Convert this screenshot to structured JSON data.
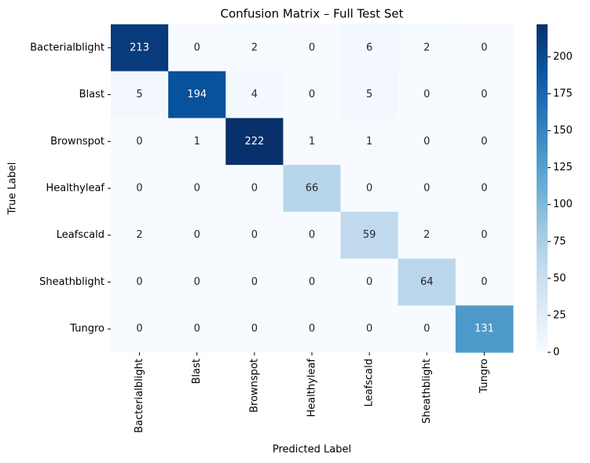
{
  "chart_data": {
    "type": "heatmap",
    "title": "Confusion Matrix – Full Test Set",
    "x_label": "Predicted Label",
    "y_label": "True Label",
    "x_categories": [
      "Bacterialblight",
      "Blast",
      "Brownspot",
      "Healthyleaf",
      "Leafscald",
      "Sheathblight",
      "Tungro"
    ],
    "y_categories": [
      "Bacterialblight",
      "Blast",
      "Brownspot",
      "Healthyleaf",
      "Leafscald",
      "Sheathblight",
      "Tungro"
    ],
    "values": [
      [
        213,
        0,
        2,
        0,
        6,
        2,
        0
      ],
      [
        5,
        194,
        4,
        0,
        5,
        0,
        0
      ],
      [
        0,
        1,
        222,
        1,
        1,
        0,
        0
      ],
      [
        0,
        0,
        0,
        66,
        0,
        0,
        0
      ],
      [
        2,
        0,
        0,
        0,
        59,
        2,
        0
      ],
      [
        0,
        0,
        0,
        0,
        0,
        64,
        0
      ],
      [
        0,
        0,
        0,
        0,
        0,
        0,
        131
      ]
    ],
    "colormap": [
      "#f7fbff",
      "#deebf7",
      "#c6dbef",
      "#9ecae1",
      "#6baed6",
      "#4292c6",
      "#2171b5",
      "#08519c",
      "#08306b"
    ],
    "clim": [
      0,
      222
    ],
    "colorbar_ticks": [
      0,
      25,
      50,
      75,
      100,
      125,
      150,
      175,
      200
    ]
  }
}
